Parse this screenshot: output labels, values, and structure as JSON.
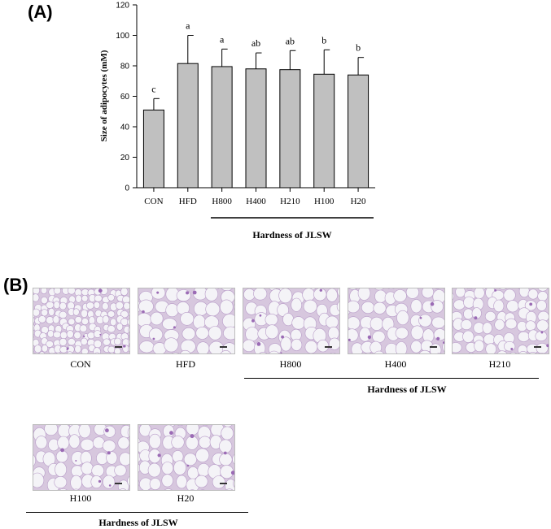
{
  "panels": {
    "a_label": "(A)",
    "b_label": "(B)"
  },
  "chart_data": {
    "type": "bar",
    "categories": [
      "CON",
      "HFD",
      "H800",
      "H400",
      "H210",
      "H100",
      "H20"
    ],
    "values": [
      51,
      81.5,
      79.5,
      78,
      77.5,
      74.5,
      74
    ],
    "errors": [
      7.5,
      18.5,
      11.5,
      10.5,
      12.5,
      16,
      11.5
    ],
    "significance": [
      "c",
      "a",
      "a",
      "ab",
      "ab",
      "b",
      "b"
    ],
    "ylabel": "Size of adipocytes (mM)",
    "ylim": [
      0,
      120
    ],
    "yticks": [
      0,
      20,
      40,
      60,
      80,
      100,
      120
    ],
    "group_label": "Hardness of JLSW",
    "bar_color": "#c0c0c0",
    "grid": false
  },
  "micrographs": {
    "row1": [
      "CON",
      "HFD",
      "H800",
      "H400",
      "H210"
    ],
    "row2": [
      "H100",
      "H20"
    ],
    "group_label_row1": "Hardness of JLSW",
    "group_label_row2": "Hardness of JLSW",
    "stain_color": "#9b6bb5"
  }
}
